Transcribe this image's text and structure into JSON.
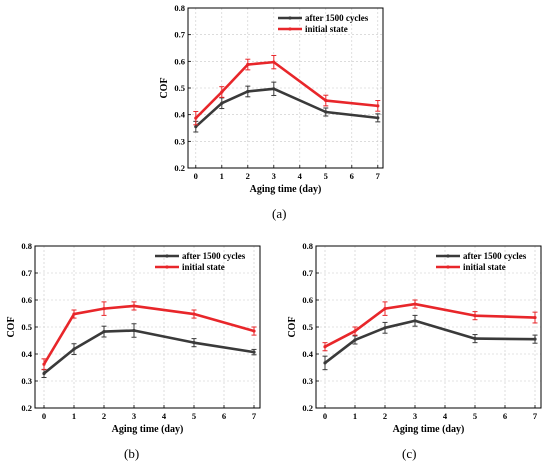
{
  "panels": [
    {
      "label": "(a)"
    },
    {
      "label": "(b)"
    },
    {
      "label": "(c)"
    }
  ],
  "chart_data": [
    {
      "type": "line",
      "xlabel": "Aging time (day)",
      "ylabel": "COF",
      "ylim": [
        0.2,
        0.8
      ],
      "xlim": [
        -0.3,
        7.2
      ],
      "yticks": [
        "0.2",
        "0.3",
        "0.4",
        "0.5",
        "0.6",
        "0.7",
        "0.8"
      ],
      "xticks": [
        "0",
        "1",
        "2",
        "3",
        "4",
        "5",
        "6",
        "7"
      ],
      "grid": true,
      "legend_position": "top-right",
      "x": [
        0,
        1,
        2,
        3,
        5,
        7
      ],
      "series": [
        {
          "name": "after 1500 cycles",
          "color": "#3a3a3a",
          "values": [
            0.355,
            0.443,
            0.487,
            0.497,
            0.41,
            0.388
          ],
          "errors": [
            0.02,
            0.02,
            0.02,
            0.025,
            0.015,
            0.015
          ]
        },
        {
          "name": "initial state",
          "color": "#e8262a",
          "values": [
            0.387,
            0.485,
            0.588,
            0.597,
            0.453,
            0.433
          ],
          "errors": [
            0.025,
            0.02,
            0.02,
            0.025,
            0.02,
            0.02
          ]
        }
      ]
    },
    {
      "type": "line",
      "xlabel": "Aging time (day)",
      "ylabel": "COF",
      "ylim": [
        0.2,
        0.8
      ],
      "xlim": [
        -0.3,
        7.2
      ],
      "yticks": [
        "0.2",
        "0.3",
        "0.4",
        "0.5",
        "0.6",
        "0.7",
        "0.8"
      ],
      "xticks": [
        "0",
        "1",
        "2",
        "3",
        "4",
        "5",
        "6",
        "7"
      ],
      "grid": true,
      "legend_position": "top-right",
      "x": [
        0,
        1,
        2,
        3,
        5,
        7
      ],
      "series": [
        {
          "name": "after 1500 cycles",
          "color": "#3a3a3a",
          "values": [
            0.328,
            0.418,
            0.483,
            0.487,
            0.442,
            0.407
          ],
          "errors": [
            0.015,
            0.02,
            0.02,
            0.025,
            0.015,
            0.01
          ]
        },
        {
          "name": "initial state",
          "color": "#e8262a",
          "values": [
            0.362,
            0.548,
            0.568,
            0.578,
            0.548,
            0.485
          ],
          "errors": [
            0.02,
            0.015,
            0.025,
            0.015,
            0.015,
            0.015
          ]
        }
      ]
    },
    {
      "type": "line",
      "xlabel": "Aging time (day)",
      "ylabel": "COF",
      "ylim": [
        0.2,
        0.8
      ],
      "xlim": [
        -0.3,
        7.2
      ],
      "yticks": [
        "0.2",
        "0.3",
        "0.4",
        "0.5",
        "0.6",
        "0.7",
        "0.8"
      ],
      "xticks": [
        "0",
        "1",
        "2",
        "3",
        "4",
        "5",
        "6",
        "7"
      ],
      "grid": true,
      "legend_position": "top-right",
      "x": [
        0,
        1,
        2,
        3,
        5,
        7
      ],
      "series": [
        {
          "name": "after 1500 cycles",
          "color": "#3a3a3a",
          "values": [
            0.367,
            0.452,
            0.497,
            0.523,
            0.457,
            0.455
          ],
          "errors": [
            0.025,
            0.015,
            0.02,
            0.02,
            0.015,
            0.015
          ]
        },
        {
          "name": "initial state",
          "color": "#e8262a",
          "values": [
            0.427,
            0.485,
            0.568,
            0.585,
            0.542,
            0.535
          ],
          "errors": [
            0.015,
            0.015,
            0.025,
            0.015,
            0.015,
            0.02
          ]
        }
      ]
    }
  ]
}
